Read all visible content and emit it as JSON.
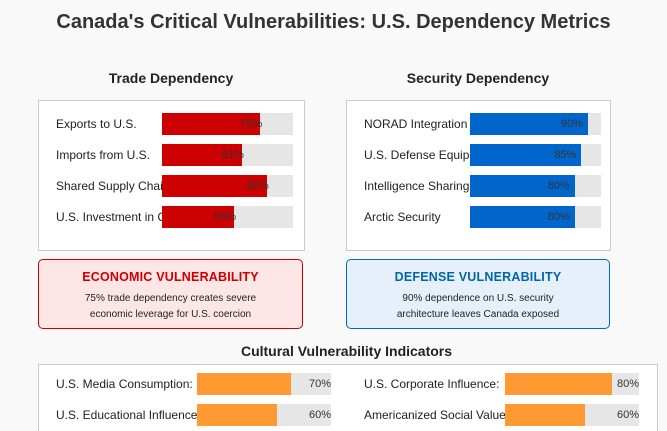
{
  "title": "Canada's Critical Vulnerabilities: U.S. Dependency Metrics",
  "trade": {
    "heading": "Trade Dependency",
    "items": [
      {
        "label": "Exports to U.S.",
        "value": 75,
        "pct": "75%"
      },
      {
        "label": "Imports from U.S.",
        "value": 61,
        "pct": "61%"
      },
      {
        "label": "Shared Supply Chains",
        "value": 80,
        "pct": "80%"
      },
      {
        "label": "U.S. Investment in Canada",
        "value": 55,
        "pct": "55%"
      }
    ]
  },
  "security": {
    "heading": "Security Dependency",
    "items": [
      {
        "label": "NORAD Integration",
        "value": 90,
        "pct": "90%"
      },
      {
        "label": "U.S. Defense Equipment",
        "value": 85,
        "pct": "85%"
      },
      {
        "label": "Intelligence Sharing",
        "value": 80,
        "pct": "80%"
      },
      {
        "label": "Arctic Security",
        "value": 80,
        "pct": "80%"
      }
    ]
  },
  "economic_box": {
    "title": "ECONOMIC VULNERABILITY",
    "text": "75% trade dependency creates severe\neconomic leverage for U.S. coercion"
  },
  "defense_box": {
    "title": "DEFENSE VULNERABILITY",
    "text": "90% dependence on U.S. security\narchitecture leaves Canada exposed"
  },
  "cultural": {
    "heading": "Cultural Vulnerability Indicators",
    "items": [
      {
        "label": "U.S. Media Consumption:",
        "value": 70,
        "pct": "70%"
      },
      {
        "label": "U.S. Corporate Influence:",
        "value": 80,
        "pct": "80%"
      },
      {
        "label": "U.S. Educational Influence:",
        "value": 60,
        "pct": "60%"
      },
      {
        "label": "Americanized Social Values:",
        "value": 60,
        "pct": "60%"
      }
    ]
  },
  "colors": {
    "trade_bar": "#cc0000",
    "security_bar": "#0066cc",
    "cultural_bar": "#ff9933",
    "economic_title": "#cc0000",
    "economic_bg": "#ffe6e6",
    "economic_border": "#cc0000",
    "defense_title": "#0066aa",
    "defense_bg": "#e6f0fa",
    "defense_border": "#0066cc"
  },
  "chart_data": [
    {
      "type": "bar",
      "title": "Trade Dependency",
      "categories": [
        "Exports to U.S.",
        "Imports from U.S.",
        "Shared Supply Chains",
        "U.S. Investment in Canada"
      ],
      "values": [
        75,
        61,
        80,
        55
      ],
      "ylim": [
        0,
        100
      ]
    },
    {
      "type": "bar",
      "title": "Security Dependency",
      "categories": [
        "NORAD Integration",
        "U.S. Defense Equipment",
        "Intelligence Sharing",
        "Arctic Security"
      ],
      "values": [
        90,
        85,
        80,
        80
      ],
      "ylim": [
        0,
        100
      ]
    },
    {
      "type": "bar",
      "title": "Cultural Vulnerability Indicators",
      "categories": [
        "U.S. Media Consumption:",
        "U.S. Corporate Influence:",
        "U.S. Educational Influence:",
        "Americanized Social Values:"
      ],
      "values": [
        70,
        80,
        60,
        60
      ],
      "ylim": [
        0,
        100
      ]
    }
  ]
}
